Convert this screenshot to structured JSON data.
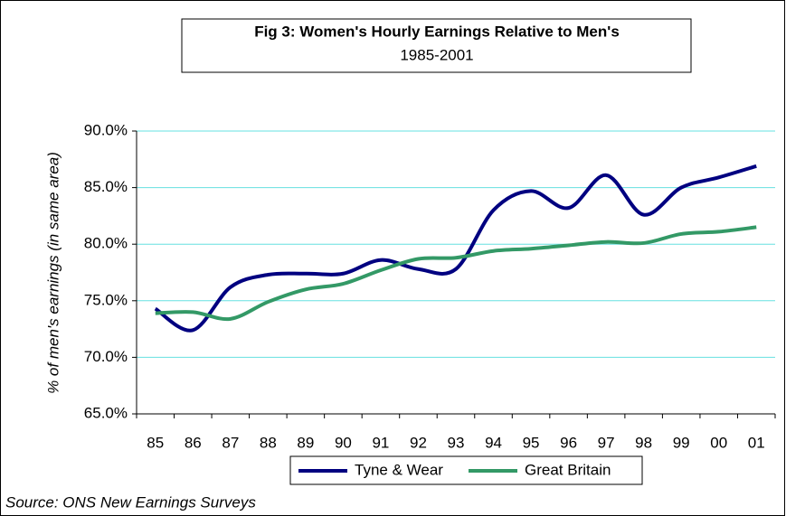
{
  "chart_data": {
    "type": "line",
    "title": "Fig 3: Women's Hourly Earnings Relative to Men's",
    "subtitle": "1985-2001",
    "y_label": "% of men's earnings (in same area)",
    "source": "Source: ONS New Earnings Surveys",
    "categories": [
      "85",
      "86",
      "87",
      "88",
      "89",
      "90",
      "91",
      "92",
      "93",
      "94",
      "95",
      "96",
      "97",
      "98",
      "99",
      "00",
      "01"
    ],
    "series": [
      {
        "name": "Tyne & Wear",
        "color": "#000080",
        "values": [
          74.3,
          72.4,
          76.2,
          77.3,
          77.4,
          77.4,
          78.6,
          77.8,
          77.8,
          83.0,
          84.7,
          83.2,
          86.1,
          82.6,
          85.0,
          85.9,
          86.9
        ]
      },
      {
        "name": "Great Britain",
        "color": "#339966",
        "values": [
          73.9,
          74.0,
          73.4,
          74.9,
          76.0,
          76.5,
          77.7,
          78.7,
          78.8,
          79.4,
          79.6,
          79.9,
          80.2,
          80.1,
          80.9,
          81.1,
          81.5
        ]
      }
    ],
    "ylim": [
      65,
      90
    ],
    "yticks": [
      {
        "value": 65,
        "label": "65.0%"
      },
      {
        "value": 70,
        "label": "70.0%"
      },
      {
        "value": 75,
        "label": "75.0%"
      },
      {
        "value": 80,
        "label": "80.0%"
      },
      {
        "value": 85,
        "label": "85.0%"
      },
      {
        "value": 90,
        "label": "90.0%"
      }
    ],
    "grid": true,
    "grid_color": "#66e0e0"
  }
}
